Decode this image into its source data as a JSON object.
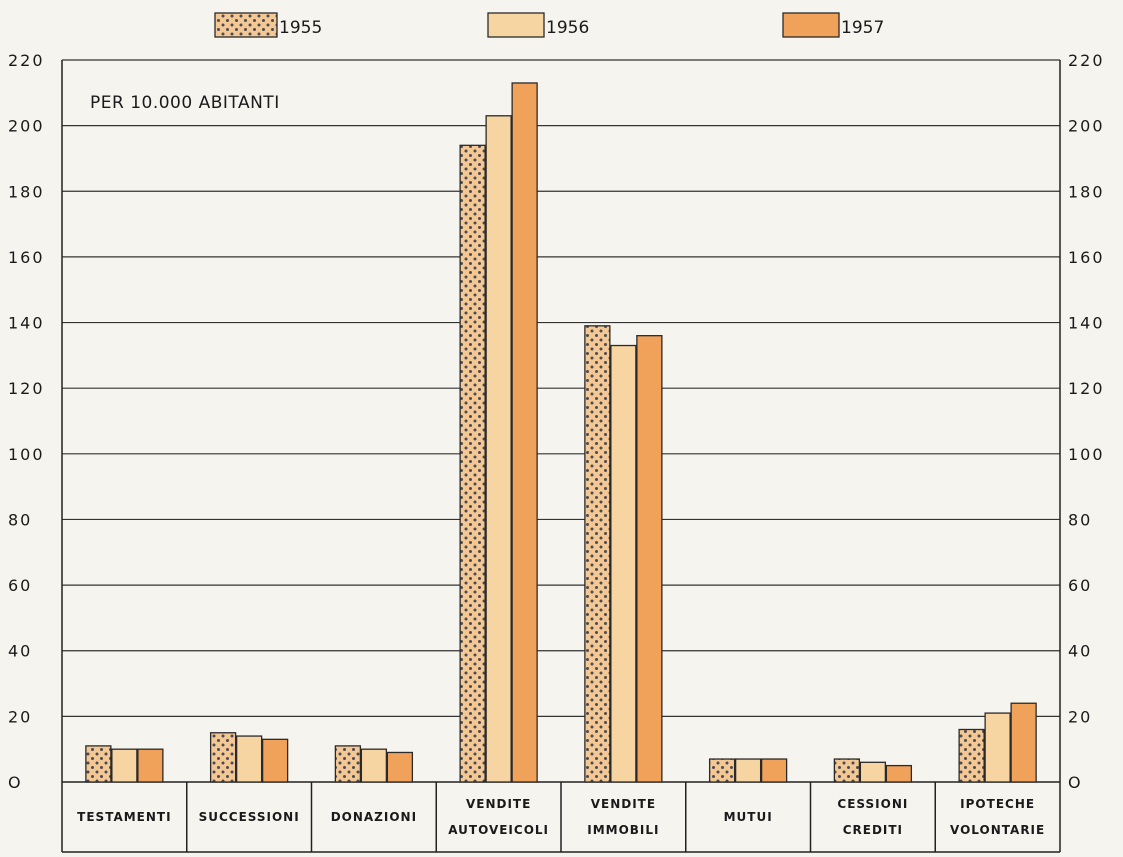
{
  "chart_data": {
    "type": "bar",
    "annotation": "PER 10.000 ABITANTI",
    "categories": [
      [
        "TESTAMENTI"
      ],
      [
        "SUCCESSIONI"
      ],
      [
        "DONAZIONI"
      ],
      [
        "VENDITE",
        "AUTOVEICOLI"
      ],
      [
        "VENDITE",
        "IMMOBILI"
      ],
      [
        "MUTUI"
      ],
      [
        "CESSIONI",
        "CREDITI"
      ],
      [
        "IPOTECHE",
        "VOLONTARIE"
      ]
    ],
    "series": [
      {
        "name": "1955",
        "values": [
          11,
          15,
          11,
          194,
          139,
          7,
          7,
          16
        ],
        "color": "#f4c894",
        "pattern": "dotted"
      },
      {
        "name": "1956",
        "values": [
          10,
          14,
          10,
          203,
          133,
          7,
          6,
          21
        ],
        "color": "#f7d5a2",
        "pattern": "solid"
      },
      {
        "name": "1957",
        "values": [
          10,
          13,
          9,
          213,
          136,
          7,
          5,
          24
        ],
        "color": "#f0a25a",
        "pattern": "solid"
      }
    ],
    "ylim": [
      0,
      220
    ],
    "yticks": [
      0,
      20,
      40,
      60,
      80,
      100,
      120,
      140,
      160,
      180,
      200,
      220
    ],
    "ytick_labels": [
      "O",
      "20",
      "40",
      "60",
      "80",
      "100",
      "120",
      "140",
      "160",
      "180",
      "200",
      "220"
    ],
    "right_axis": true,
    "grid": true,
    "legend_position": "top"
  }
}
